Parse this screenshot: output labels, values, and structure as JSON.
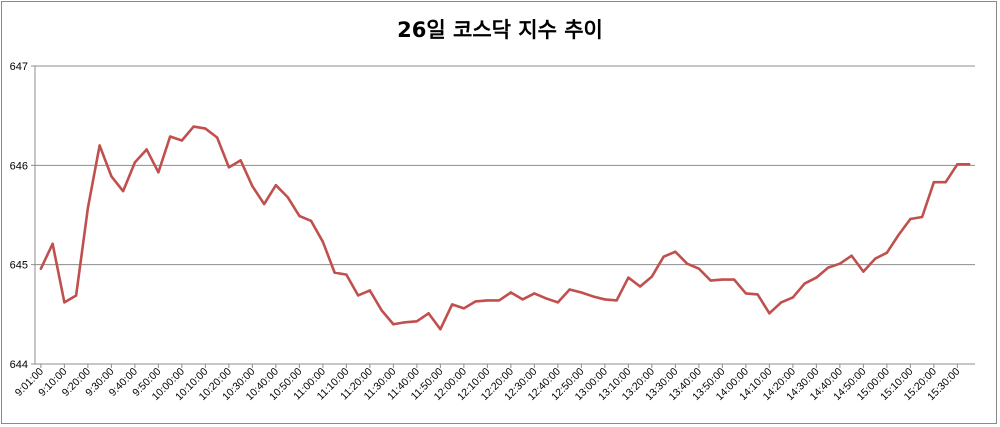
{
  "chart_data": {
    "type": "line",
    "title": "26일 코스닥 지수 추이",
    "xlabel": "",
    "ylabel": "",
    "ylim": [
      644,
      647
    ],
    "yticks": [
      "644",
      "645",
      "646",
      "647"
    ],
    "grid": true,
    "legend": "none",
    "colors": {
      "line": "#c0504d",
      "grid": "#8c8c8c",
      "axis": "#8c8c8c"
    },
    "x_tick_labels": [
      "9:01:00",
      "9:10:00",
      "9:20:00",
      "9:30:00",
      "9:40:00",
      "9:50:00",
      "10:00:00",
      "10:10:00",
      "10:20:00",
      "10:30:00",
      "10:40:00",
      "10:50:00",
      "11:00:00",
      "11:10:00",
      "11:20:00",
      "11:30:00",
      "11:40:00",
      "11:50:00",
      "12:00:00",
      "12:10:00",
      "12:20:00",
      "12:30:00",
      "12:40:00",
      "12:50:00",
      "13:00:00",
      "13:10:00",
      "13:20:00",
      "13:30:00",
      "13:40:00",
      "13:50:00",
      "14:00:00",
      "14:10:00",
      "14:20:00",
      "14:30:00",
      "14:40:00",
      "14:50:00",
      "15:00:00",
      "15:10:00",
      "15:20:00",
      "15:30:00"
    ],
    "series": [
      {
        "values": [
          644.96,
          645.21,
          644.62,
          644.69,
          645.57,
          646.2,
          645.89,
          645.74,
          646.03,
          646.16,
          645.93,
          646.29,
          646.25,
          646.39,
          646.37,
          646.28,
          645.98,
          646.05,
          645.79,
          645.61,
          645.8,
          645.68,
          645.49,
          645.44,
          645.23,
          644.92,
          644.9,
          644.69,
          644.74,
          644.54,
          644.4,
          644.42,
          644.43,
          644.51,
          644.35,
          644.6,
          644.56,
          644.63,
          644.64,
          644.64,
          644.72,
          644.65,
          644.71,
          644.66,
          644.62,
          644.75,
          644.72,
          644.68,
          644.65,
          644.64,
          644.87,
          644.78,
          644.88,
          645.08,
          645.13,
          645.01,
          644.96,
          644.84,
          644.85,
          644.85,
          644.71,
          644.7,
          644.51,
          644.62,
          644.67,
          644.81,
          644.87,
          644.97,
          645.01,
          645.09,
          644.93,
          645.06,
          645.12,
          645.3,
          645.46,
          645.48,
          645.83,
          645.83,
          646.01,
          646.01
        ]
      }
    ]
  }
}
